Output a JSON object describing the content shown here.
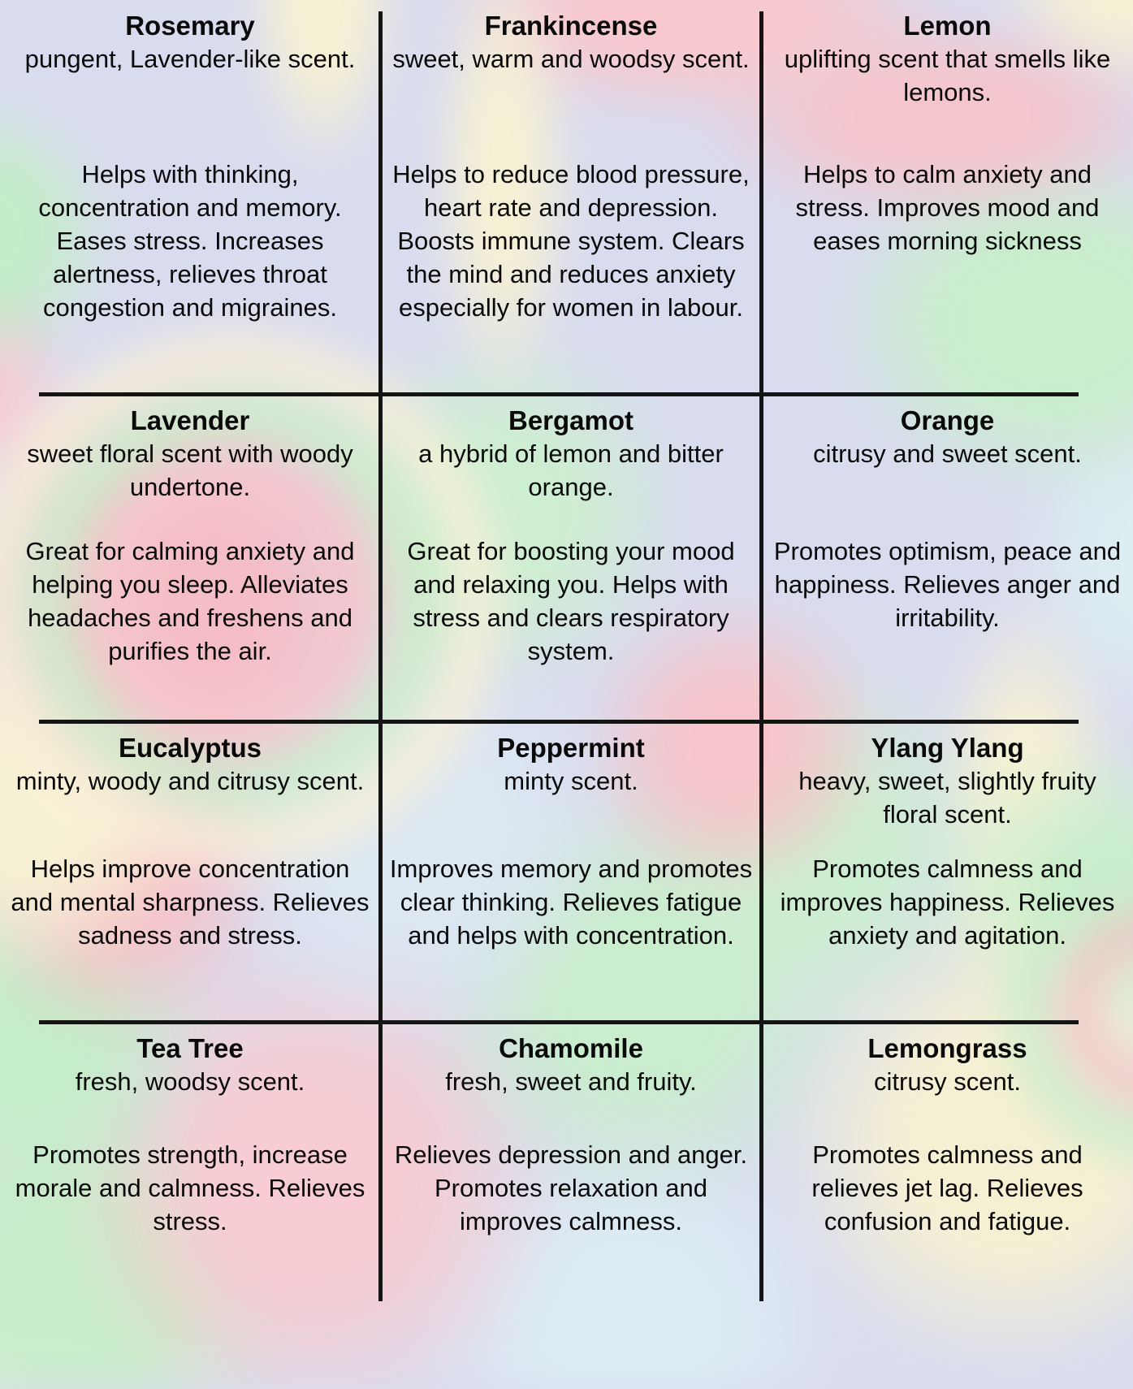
{
  "colors": {
    "text": "#0a0a0a",
    "grid_line": "#141414",
    "bg_lavender": "#d9dcee",
    "bg_pink": "#f6c6cc",
    "bg_green": "#c8eecb",
    "bg_cream": "#f7f1d4",
    "bg_blue": "#dceef2"
  },
  "cells": [
    {
      "name": "Rosemary",
      "scent": "pungent, Lavender-like scent.",
      "benefits": "Helps with thinking, concentration and memory. Eases stress. Increases alertness, relieves throat congestion and migraines."
    },
    {
      "name": "Frankincense",
      "scent": "sweet, warm and woodsy scent.",
      "benefits": "Helps to reduce blood pressure, heart rate and depression. Boosts immune system. Clears the mind and reduces anxiety especially for women in labour."
    },
    {
      "name": "Lemon",
      "scent": "uplifting scent that smells like lemons.",
      "benefits": "Helps to calm anxiety and stress. Improves mood and eases morning sickness"
    },
    {
      "name": "Lavender",
      "scent": "sweet floral scent with woody undertone.",
      "benefits": "Great for calming anxiety and helping you sleep. Alleviates headaches and freshens and purifies the air."
    },
    {
      "name": "Bergamot",
      "scent": "a hybrid of lemon and bitter orange.",
      "benefits": "Great for boosting your mood and relaxing you. Helps with stress and clears respiratory system."
    },
    {
      "name": "Orange",
      "scent": "citrusy and sweet scent.",
      "benefits": "Promotes optimism, peace and happiness. Relieves anger and irritability."
    },
    {
      "name": "Eucalyptus",
      "scent": "minty, woody and citrusy scent.",
      "benefits": "Helps improve concentration and mental sharpness. Relieves sadness and stress."
    },
    {
      "name": "Peppermint",
      "scent": "minty scent.",
      "benefits": "Improves memory and promotes clear thinking. Relieves fatigue and helps with concentration."
    },
    {
      "name": "Ylang Ylang",
      "scent": "heavy, sweet, slightly fruity floral scent.",
      "benefits": "Promotes calmness and improves happiness. Relieves anxiety and agitation."
    },
    {
      "name": "Tea Tree",
      "scent": "fresh, woodsy scent.",
      "benefits": "Promotes strength, increase morale and calmness. Relieves stress."
    },
    {
      "name": "Chamomile",
      "scent": "fresh, sweet and fruity.",
      "benefits": "Relieves depression and anger. Promotes relaxation and improves calmness."
    },
    {
      "name": "Lemongrass",
      "scent": "citrusy scent.",
      "benefits": "Promotes calmness and relieves jet lag. Relieves confusion and fatigue."
    }
  ]
}
